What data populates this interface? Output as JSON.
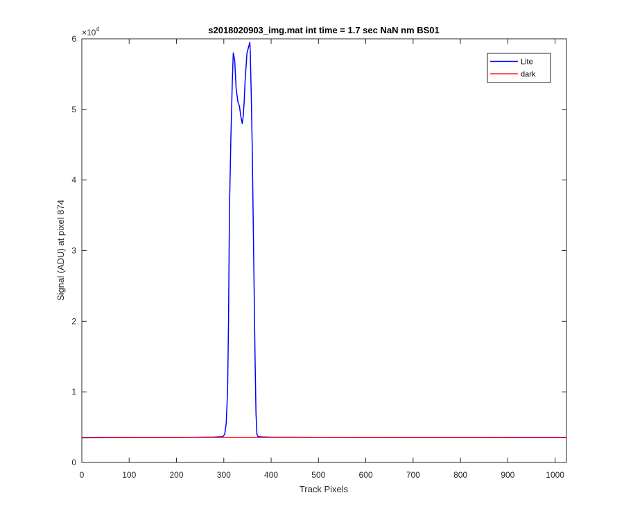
{
  "chart_data": {
    "type": "line",
    "title": "s2018020903_img.mat int time = 1.7 sec  NaN nm BS01",
    "xlabel": "Track Pixels",
    "ylabel": "Signal (ADU) at pixel 874",
    "xlim": [
      0,
      1024
    ],
    "ylim": [
      0,
      60000
    ],
    "x_ticks": [
      0,
      100,
      200,
      300,
      400,
      500,
      600,
      700,
      800,
      900,
      1000
    ],
    "y_ticks": [
      0,
      10000,
      20000,
      30000,
      40000,
      50000,
      60000
    ],
    "y_tick_labels": [
      "0",
      "1",
      "2",
      "3",
      "4",
      "5",
      "6"
    ],
    "y_exponent_base": "×10",
    "y_exponent_power": "4",
    "grid": false,
    "legend_position": "top-right",
    "series": [
      {
        "name": "Lite",
        "color": "#0000ff",
        "x": [
          0,
          100,
          200,
          280,
          298,
          302,
          305,
          308,
          310,
          312,
          315,
          318,
          320,
          323,
          326,
          330,
          333,
          336,
          339,
          341,
          343,
          345,
          347,
          349,
          351,
          353,
          355,
          356,
          358,
          360,
          362,
          364,
          366,
          368,
          370,
          372,
          375,
          380,
          400,
          500,
          600,
          700,
          800,
          900,
          1024
        ],
        "y": [
          3500,
          3520,
          3540,
          3600,
          3650,
          4000,
          5500,
          10000,
          20000,
          36000,
          46000,
          54000,
          58000,
          57000,
          53000,
          51000,
          50500,
          49000,
          48000,
          49000,
          51000,
          54000,
          56000,
          58000,
          58500,
          59000,
          59500,
          58000,
          52000,
          45000,
          35000,
          25000,
          15000,
          7000,
          4000,
          3700,
          3650,
          3620,
          3580,
          3560,
          3550,
          3540,
          3530,
          3520,
          3510
        ]
      },
      {
        "name": "dark",
        "color": "#ff0000",
        "x": [
          0,
          1024
        ],
        "y": [
          3550,
          3550
        ]
      }
    ]
  }
}
